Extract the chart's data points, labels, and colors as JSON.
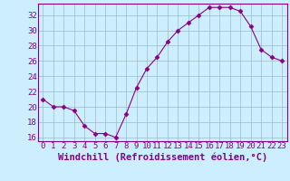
{
  "x": [
    0,
    1,
    2,
    3,
    4,
    5,
    6,
    7,
    8,
    9,
    10,
    11,
    12,
    13,
    14,
    15,
    16,
    17,
    18,
    19,
    20,
    21,
    22,
    23
  ],
  "y": [
    21,
    20,
    20,
    19.5,
    17.5,
    16.5,
    16.5,
    16,
    19,
    22.5,
    25,
    26.5,
    28.5,
    30,
    31,
    32,
    33,
    33,
    33,
    32.5,
    30.5,
    27.5,
    26.5,
    26
  ],
  "line_color": "#880088",
  "marker": "D",
  "marker_size": 2.5,
  "bg_color": "#cceeff",
  "grid_color": "#99bbcc",
  "xlabel": "Windchill (Refroidissement éolien,°C)",
  "xlabel_color": "#880088",
  "ylim": [
    15.5,
    33.5
  ],
  "yticks": [
    16,
    18,
    20,
    22,
    24,
    26,
    28,
    30,
    32
  ],
  "xticks": [
    0,
    1,
    2,
    3,
    4,
    5,
    6,
    7,
    8,
    9,
    10,
    11,
    12,
    13,
    14,
    15,
    16,
    17,
    18,
    19,
    20,
    21,
    22,
    23
  ],
  "tick_color": "#880088",
  "axis_color": "#880088",
  "font_size": 6.5,
  "xlabel_fontsize": 7.5
}
